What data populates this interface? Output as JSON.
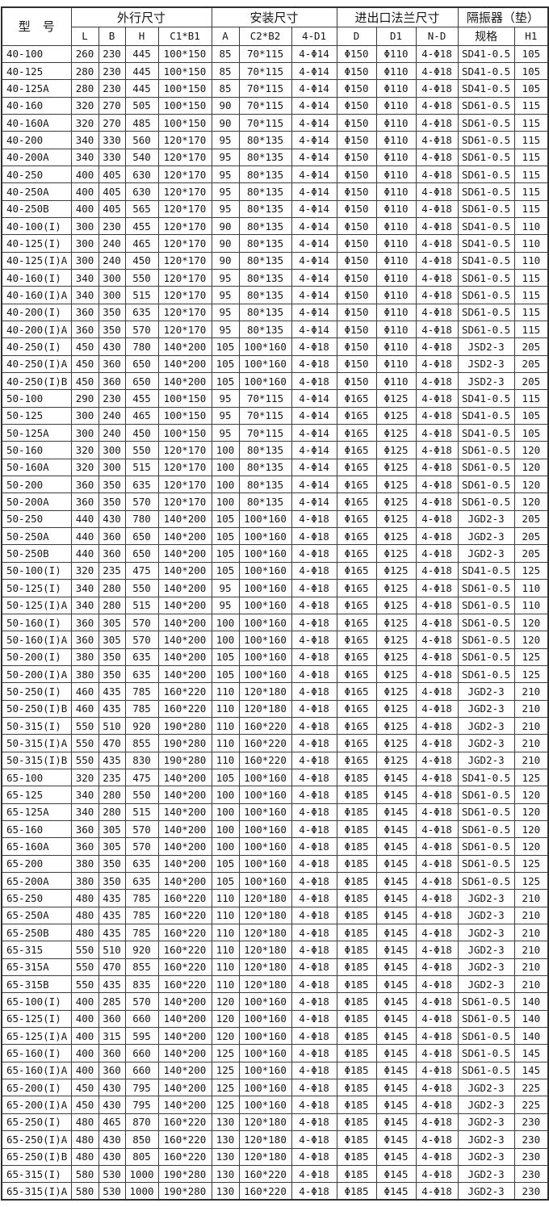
{
  "colors": {
    "background": "#ffffff",
    "border": "#3c3c3c",
    "text": "#161616"
  },
  "table": {
    "model_header": "型　号",
    "groups": [
      {
        "label": "外行尺寸"
      },
      {
        "label": "安装尺寸"
      },
      {
        "label": "进出口法兰尺寸"
      },
      {
        "label": "隔振器（垫）"
      }
    ],
    "columns": [
      "L",
      "B",
      "H",
      "C1*B1",
      "A",
      "C2*B2",
      "4-D1",
      "D",
      "D1",
      "N-D",
      "规格",
      "H1"
    ],
    "rows": [
      [
        "40-100",
        "260",
        "230",
        "445",
        "100*150",
        "85",
        "70*115",
        "4-Φ14",
        "Φ150",
        "Φ110",
        "4-Φ18",
        "SD41-0.5",
        "105"
      ],
      [
        "40-125",
        "280",
        "230",
        "445",
        "100*150",
        "85",
        "70*115",
        "4-Φ14",
        "Φ150",
        "Φ110",
        "4-Φ18",
        "SD41-0.5",
        "105"
      ],
      [
        "40-125A",
        "280",
        "230",
        "445",
        "100*150",
        "85",
        "70*115",
        "4-Φ14",
        "Φ150",
        "Φ110",
        "4-Φ18",
        "SD41-0.5",
        "105"
      ],
      [
        "40-160",
        "320",
        "270",
        "505",
        "100*150",
        "90",
        "70*115",
        "4-Φ14",
        "Φ150",
        "Φ110",
        "4-Φ18",
        "SD61-0.5",
        "115"
      ],
      [
        "40-160A",
        "320",
        "270",
        "485",
        "100*150",
        "90",
        "70*115",
        "4-Φ14",
        "Φ150",
        "Φ110",
        "4-Φ18",
        "SD61-0.5",
        "115"
      ],
      [
        "40-200",
        "340",
        "330",
        "560",
        "120*170",
        "95",
        "80*135",
        "4-Φ14",
        "Φ150",
        "Φ110",
        "4-Φ18",
        "SD61-0.5",
        "115"
      ],
      [
        "40-200A",
        "340",
        "330",
        "540",
        "120*170",
        "95",
        "80*135",
        "4-Φ14",
        "Φ150",
        "Φ110",
        "4-Φ18",
        "SD61-0.5",
        "115"
      ],
      [
        "40-250",
        "400",
        "405",
        "630",
        "120*170",
        "95",
        "80*135",
        "4-Φ14",
        "Φ150",
        "Φ110",
        "4-Φ18",
        "SD61-0.5",
        "115"
      ],
      [
        "40-250A",
        "400",
        "405",
        "630",
        "120*170",
        "95",
        "80*135",
        "4-Φ14",
        "Φ150",
        "Φ110",
        "4-Φ18",
        "SD61-0.5",
        "115"
      ],
      [
        "40-250B",
        "400",
        "405",
        "565",
        "120*170",
        "95",
        "80*135",
        "4-Φ14",
        "Φ150",
        "Φ110",
        "4-Φ18",
        "SD61-0.5",
        "115"
      ],
      [
        "40-100(I)",
        "300",
        "230",
        "455",
        "120*170",
        "90",
        "80*135",
        "4-Φ14",
        "Φ150",
        "Φ110",
        "4-Φ18",
        "SD41-0.5",
        "110"
      ],
      [
        "40-125(I)",
        "300",
        "240",
        "465",
        "120*170",
        "90",
        "80*135",
        "4-Φ14",
        "Φ150",
        "Φ110",
        "4-Φ18",
        "SD41-0.5",
        "110"
      ],
      [
        "40-125(I)A",
        "300",
        "240",
        "450",
        "120*170",
        "90",
        "80*135",
        "4-Φ14",
        "Φ150",
        "Φ110",
        "4-Φ18",
        "SD41-0.5",
        "110"
      ],
      [
        "40-160(I)",
        "340",
        "300",
        "550",
        "120*170",
        "95",
        "80*135",
        "4-Φ14",
        "Φ150",
        "Φ110",
        "4-Φ18",
        "SD61-0.5",
        "115"
      ],
      [
        "40-160(I)A",
        "340",
        "300",
        "515",
        "120*170",
        "95",
        "80*135",
        "4-Φ14",
        "Φ150",
        "Φ110",
        "4-Φ18",
        "SD61-0.5",
        "115"
      ],
      [
        "40-200(I)",
        "360",
        "350",
        "635",
        "120*170",
        "95",
        "80*135",
        "4-Φ14",
        "Φ150",
        "Φ110",
        "4-Φ18",
        "SD61-0.5",
        "115"
      ],
      [
        "40-200(I)A",
        "360",
        "350",
        "570",
        "120*170",
        "95",
        "80*135",
        "4-Φ14",
        "Φ150",
        "Φ110",
        "4-Φ18",
        "SD61-0.5",
        "115"
      ],
      [
        "40-250(I)",
        "450",
        "430",
        "780",
        "140*200",
        "105",
        "100*160",
        "4-Φ18",
        "Φ150",
        "Φ110",
        "4-Φ18",
        "JSD2-3",
        "205"
      ],
      [
        "40-250(I)A",
        "450",
        "360",
        "650",
        "140*200",
        "105",
        "100*160",
        "4-Φ18",
        "Φ150",
        "Φ110",
        "4-Φ18",
        "JSD2-3",
        "205"
      ],
      [
        "40-250(I)B",
        "450",
        "360",
        "650",
        "140*200",
        "105",
        "100*160",
        "4-Φ18",
        "Φ150",
        "Φ110",
        "4-Φ18",
        "JSD2-3",
        "205"
      ],
      [
        "50-100",
        "290",
        "230",
        "455",
        "100*150",
        "95",
        "70*115",
        "4-Φ14",
        "Φ165",
        "Φ125",
        "4-Φ18",
        "SD41-0.5",
        "115"
      ],
      [
        "50-125",
        "300",
        "240",
        "465",
        "100*150",
        "95",
        "70*115",
        "4-Φ14",
        "Φ165",
        "Φ125",
        "4-Φ18",
        "SD41-0.5",
        "105"
      ],
      [
        "50-125A",
        "300",
        "240",
        "450",
        "100*150",
        "95",
        "70*115",
        "4-Φ14",
        "Φ165",
        "Φ125",
        "4-Φ18",
        "SD41-0.5",
        "105"
      ],
      [
        "50-160",
        "320",
        "300",
        "550",
        "120*170",
        "100",
        "80*135",
        "4-Φ14",
        "Φ165",
        "Φ125",
        "4-Φ18",
        "SD61-0.5",
        "120"
      ],
      [
        "50-160A",
        "320",
        "300",
        "515",
        "120*170",
        "100",
        "80*135",
        "4-Φ14",
        "Φ165",
        "Φ125",
        "4-Φ18",
        "SD61-0.5",
        "120"
      ],
      [
        "50-200",
        "360",
        "350",
        "635",
        "120*170",
        "100",
        "80*135",
        "4-Φ14",
        "Φ165",
        "Φ125",
        "4-Φ18",
        "SD61-0.5",
        "120"
      ],
      [
        "50-200A",
        "360",
        "350",
        "570",
        "120*170",
        "100",
        "80*135",
        "4-Φ14",
        "Φ165",
        "Φ125",
        "4-Φ18",
        "SD61-0.5",
        "120"
      ],
      [
        "50-250",
        "440",
        "430",
        "780",
        "140*200",
        "105",
        "100*160",
        "4-Φ18",
        "Φ165",
        "Φ125",
        "4-Φ18",
        "JGD2-3",
        "205"
      ],
      [
        "50-250A",
        "440",
        "360",
        "650",
        "140*200",
        "105",
        "100*160",
        "4-Φ18",
        "Φ165",
        "Φ125",
        "4-Φ18",
        "JGD2-3",
        "205"
      ],
      [
        "50-250B",
        "440",
        "360",
        "650",
        "140*200",
        "105",
        "100*160",
        "4-Φ18",
        "Φ165",
        "Φ125",
        "4-Φ18",
        "JGD2-3",
        "205"
      ],
      [
        "50-100(I)",
        "320",
        "235",
        "475",
        "140*200",
        "105",
        "100*160",
        "4-Φ18",
        "Φ165",
        "Φ125",
        "4-Φ18",
        "SD41-0.5",
        "125"
      ],
      [
        "50-125(I)",
        "340",
        "280",
        "550",
        "140*200",
        "95",
        "100*160",
        "4-Φ18",
        "Φ165",
        "Φ125",
        "4-Φ18",
        "SD61-0.5",
        "110"
      ],
      [
        "50-125(I)A",
        "340",
        "280",
        "515",
        "140*200",
        "95",
        "100*160",
        "4-Φ18",
        "Φ165",
        "Φ125",
        "4-Φ18",
        "SD61-0.5",
        "110"
      ],
      [
        "50-160(I)",
        "360",
        "305",
        "570",
        "140*200",
        "100",
        "100*160",
        "4-Φ18",
        "Φ165",
        "Φ125",
        "4-Φ18",
        "SD61-0.5",
        "120"
      ],
      [
        "50-160(I)A",
        "360",
        "305",
        "570",
        "140*200",
        "100",
        "100*160",
        "4-Φ18",
        "Φ165",
        "Φ125",
        "4-Φ18",
        "SD61-0.5",
        "120"
      ],
      [
        "50-200(I)",
        "380",
        "350",
        "635",
        "140*200",
        "105",
        "100*160",
        "4-Φ18",
        "Φ165",
        "Φ125",
        "4-Φ18",
        "SD61-0.5",
        "125"
      ],
      [
        "50-200(I)A",
        "380",
        "350",
        "635",
        "140*200",
        "105",
        "100*160",
        "4-Φ18",
        "Φ165",
        "Φ125",
        "4-Φ18",
        "SD61-0.5",
        "125"
      ],
      [
        "50-250(I)",
        "460",
        "435",
        "785",
        "160*220",
        "110",
        "120*180",
        "4-Φ18",
        "Φ165",
        "Φ125",
        "4-Φ18",
        "JGD2-3",
        "210"
      ],
      [
        "50-250(I)B",
        "460",
        "435",
        "785",
        "160*220",
        "110",
        "120*180",
        "4-Φ18",
        "Φ165",
        "Φ125",
        "4-Φ18",
        "JGD2-3",
        "210"
      ],
      [
        "50-315(I)",
        "550",
        "510",
        "920",
        "190*280",
        "110",
        "160*220",
        "4-Φ18",
        "Φ165",
        "Φ125",
        "4-Φ18",
        "JGD2-3",
        "210"
      ],
      [
        "50-315(I)A",
        "550",
        "470",
        "855",
        "190*280",
        "110",
        "160*220",
        "4-Φ18",
        "Φ165",
        "Φ125",
        "4-Φ18",
        "JGD2-3",
        "210"
      ],
      [
        "50-315(I)B",
        "550",
        "435",
        "830",
        "190*280",
        "110",
        "160*220",
        "4-Φ18",
        "Φ165",
        "Φ125",
        "4-Φ18",
        "JGD2-3",
        "210"
      ],
      [
        "65-100",
        "320",
        "235",
        "475",
        "140*200",
        "105",
        "100*160",
        "4-Φ18",
        "Φ185",
        "Φ145",
        "4-Φ18",
        "SD41-0.5",
        "125"
      ],
      [
        "65-125",
        "340",
        "280",
        "550",
        "140*200",
        "100",
        "100*160",
        "4-Φ18",
        "Φ185",
        "Φ145",
        "4-Φ18",
        "SD61-0.5",
        "120"
      ],
      [
        "65-125A",
        "340",
        "280",
        "515",
        "140*200",
        "100",
        "100*160",
        "4-Φ18",
        "Φ185",
        "Φ145",
        "4-Φ18",
        "SD61-0.5",
        "120"
      ],
      [
        "65-160",
        "360",
        "305",
        "570",
        "140*200",
        "100",
        "100*160",
        "4-Φ18",
        "Φ185",
        "Φ145",
        "4-Φ18",
        "SD61-0.5",
        "120"
      ],
      [
        "65-160A",
        "360",
        "305",
        "570",
        "140*200",
        "100",
        "100*160",
        "4-Φ18",
        "Φ185",
        "Φ145",
        "4-Φ18",
        "SD61-0.5",
        "120"
      ],
      [
        "65-200",
        "380",
        "350",
        "635",
        "140*200",
        "105",
        "100*160",
        "4-Φ18",
        "Φ185",
        "Φ145",
        "4-Φ18",
        "SD61-0.5",
        "125"
      ],
      [
        "65-200A",
        "380",
        "350",
        "635",
        "140*200",
        "105",
        "100*160",
        "4-Φ18",
        "Φ185",
        "Φ145",
        "4-Φ18",
        "SD61-0.5",
        "125"
      ],
      [
        "65-250",
        "480",
        "435",
        "785",
        "160*220",
        "110",
        "120*180",
        "4-Φ18",
        "Φ185",
        "Φ145",
        "4-Φ18",
        "JGD2-3",
        "210"
      ],
      [
        "65-250A",
        "480",
        "435",
        "785",
        "160*220",
        "110",
        "120*180",
        "4-Φ18",
        "Φ185",
        "Φ145",
        "4-Φ18",
        "JGD2-3",
        "210"
      ],
      [
        "65-250B",
        "480",
        "435",
        "785",
        "160*220",
        "110",
        "120*180",
        "4-Φ18",
        "Φ185",
        "Φ145",
        "4-Φ18",
        "JGD2-3",
        "210"
      ],
      [
        "65-315",
        "550",
        "510",
        "920",
        "160*220",
        "110",
        "120*180",
        "4-Φ18",
        "Φ185",
        "Φ145",
        "4-Φ18",
        "JGD2-3",
        "210"
      ],
      [
        "65-315A",
        "550",
        "470",
        "855",
        "160*220",
        "110",
        "120*180",
        "4-Φ18",
        "Φ185",
        "Φ145",
        "4-Φ18",
        "JGD2-3",
        "210"
      ],
      [
        "65-315B",
        "550",
        "435",
        "835",
        "160*220",
        "110",
        "120*180",
        "4-Φ18",
        "Φ185",
        "Φ145",
        "4-Φ18",
        "JGD2-3",
        "210"
      ],
      [
        "65-100(I)",
        "400",
        "285",
        "570",
        "140*200",
        "120",
        "100*160",
        "4-Φ18",
        "Φ185",
        "Φ145",
        "4-Φ18",
        "SD61-0.5",
        "140"
      ],
      [
        "65-125(I)",
        "400",
        "360",
        "660",
        "140*200",
        "120",
        "100*160",
        "4-Φ18",
        "Φ185",
        "Φ145",
        "4-Φ18",
        "SD61-0.5",
        "140"
      ],
      [
        "65-125(I)A",
        "400",
        "315",
        "595",
        "140*200",
        "120",
        "100*160",
        "4-Φ18",
        "Φ185",
        "Φ145",
        "4-Φ18",
        "SD61-0.5",
        "140"
      ],
      [
        "65-160(I)",
        "400",
        "360",
        "660",
        "140*200",
        "125",
        "100*160",
        "4-Φ18",
        "Φ185",
        "Φ145",
        "4-Φ18",
        "SD61-0.5",
        "145"
      ],
      [
        "65-160(I)A",
        "400",
        "360",
        "660",
        "140*200",
        "125",
        "100*160",
        "4-Φ18",
        "Φ185",
        "Φ145",
        "4-Φ18",
        "SD61-0.5",
        "145"
      ],
      [
        "65-200(I)",
        "450",
        "430",
        "795",
        "140*200",
        "125",
        "100*160",
        "4-Φ18",
        "Φ185",
        "Φ145",
        "4-Φ18",
        "JGD2-3",
        "225"
      ],
      [
        "65-200(I)A",
        "450",
        "430",
        "795",
        "140*200",
        "125",
        "100*160",
        "4-Φ18",
        "Φ185",
        "Φ145",
        "4-Φ18",
        "JGD2-3",
        "225"
      ],
      [
        "65-250(I)",
        "480",
        "465",
        "870",
        "160*220",
        "130",
        "120*180",
        "4-Φ18",
        "Φ185",
        "Φ145",
        "4-Φ18",
        "JGD2-3",
        "230"
      ],
      [
        "65-250(I)A",
        "480",
        "430",
        "850",
        "160*220",
        "130",
        "120*180",
        "4-Φ18",
        "Φ185",
        "Φ145",
        "4-Φ18",
        "JGD2-3",
        "230"
      ],
      [
        "65-250(I)B",
        "480",
        "430",
        "805",
        "160*220",
        "130",
        "120*180",
        "4-Φ18",
        "Φ185",
        "Φ145",
        "4-Φ18",
        "JGD2-3",
        "230"
      ],
      [
        "65-315(I)",
        "580",
        "530",
        "1000",
        "190*280",
        "130",
        "160*220",
        "4-Φ18",
        "Φ185",
        "Φ145",
        "4-Φ18",
        "JGD2-3",
        "230"
      ],
      [
        "65-315(I)A",
        "580",
        "530",
        "1000",
        "190*280",
        "130",
        "160*220",
        "4-Φ18",
        "Φ185",
        "Φ145",
        "4-Φ18",
        "JGD2-3",
        "230"
      ]
    ]
  }
}
